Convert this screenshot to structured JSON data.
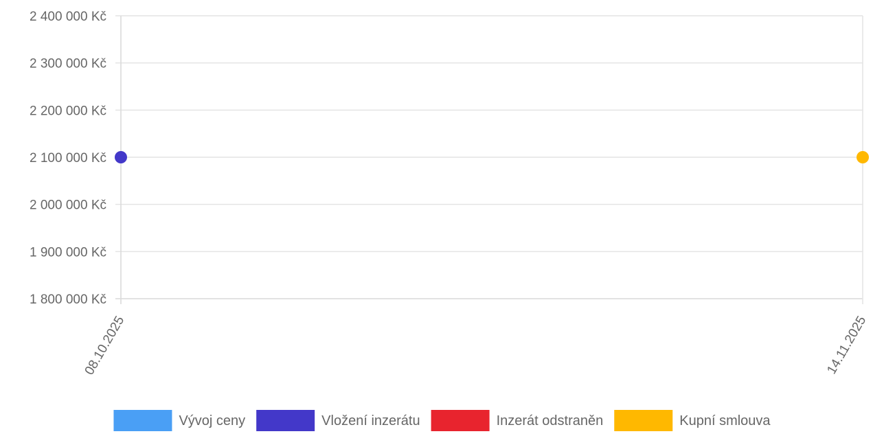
{
  "chart_data": {
    "type": "scatter",
    "title": "",
    "xlabel": "",
    "ylabel": "",
    "y_ticks": [
      2400000,
      2300000,
      2200000,
      2100000,
      2000000,
      1900000,
      1800000
    ],
    "y_tick_labels": [
      "2 400 000 Kč",
      "2 300 000 Kč",
      "2 200 000 Kč",
      "2 100 000 Kč",
      "2 000 000 Kč",
      "1 900 000 Kč",
      "1 800 000 Kč"
    ],
    "ylim": [
      1800000,
      2400000
    ],
    "x_tick_labels": [
      "08.10.2025",
      "14.11.2025"
    ],
    "grid": true,
    "legend_position": "bottom",
    "series": [
      {
        "name": "Vývoj ceny",
        "color": "#4a9ff5",
        "points": []
      },
      {
        "name": "Vložení inzerátu",
        "color": "#4338c9",
        "points": [
          {
            "x": "08.10.2025",
            "y": 2100000
          }
        ]
      },
      {
        "name": "Inzerát odstraněn",
        "color": "#e8242e",
        "points": []
      },
      {
        "name": "Kupní smlouva",
        "color": "#ffb800",
        "points": [
          {
            "x": "14.11.2025",
            "y": 2100000
          }
        ]
      }
    ]
  }
}
